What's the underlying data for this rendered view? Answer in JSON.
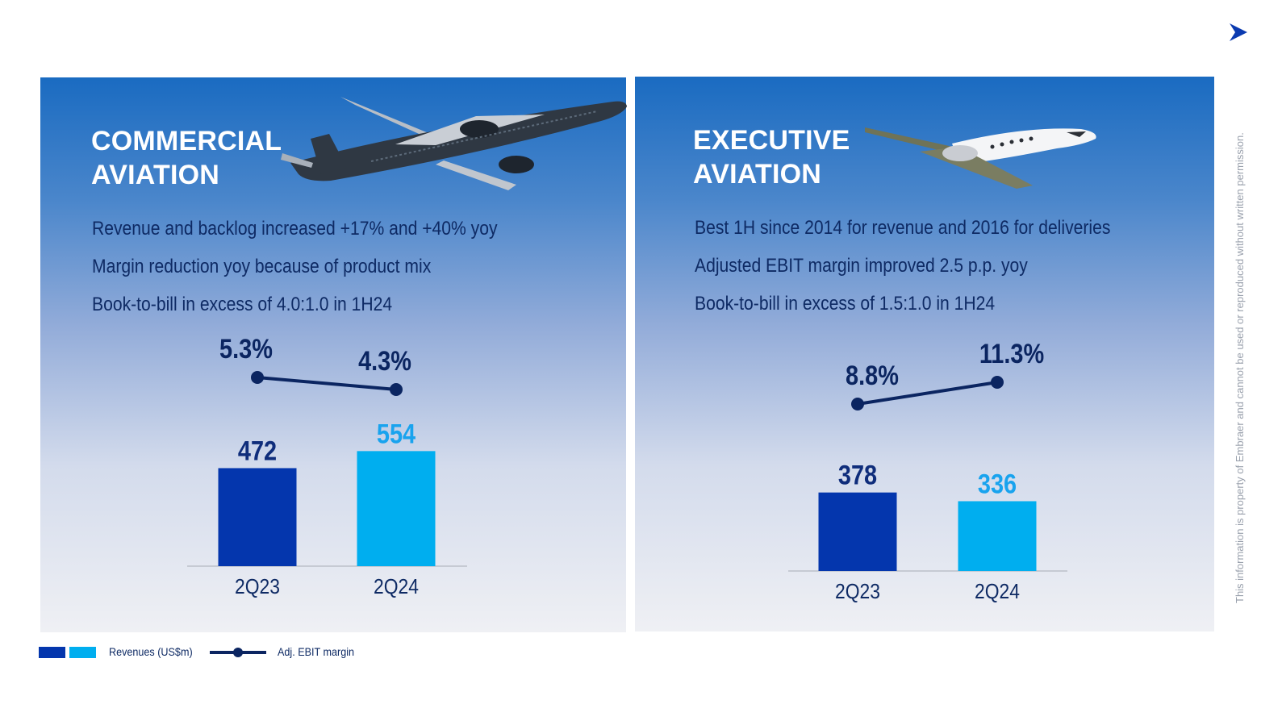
{
  "side_note": "This information is property of Embraer and cannot be used or reproduced without written permission.",
  "colors": {
    "bar_2Q23": "#0436ad",
    "bar_2Q24": "#00aeef",
    "line": "#0b2561",
    "label_2Q24": "#19a3ee"
  },
  "icons": {
    "nav": "arrow-right-icon"
  },
  "commercial": {
    "title": "COMMERCIAL\nAVIATION",
    "bullets": [
      "Revenue and backlog increased +17% and +40% yoy",
      "Margin reduction yoy because of product mix",
      "Book-to-bill in excess of 4.0:1.0 in 1H24"
    ]
  },
  "executive": {
    "title": "EXECUTIVE\nAVIATION",
    "bullets": [
      "Best 1H since 2014 for revenue and 2016 for deliveries",
      "Adjusted EBIT margin improved 2.5 p.p. yoy",
      "Book-to-bill in excess of 1.5:1.0 in 1H24"
    ]
  },
  "legend": {
    "revenues": "Revenues (US$m)",
    "margin": "Adj. EBIT margin"
  },
  "chart_data": [
    {
      "type": "bar",
      "panel": "COMMERCIAL AVIATION",
      "categories": [
        "2Q23",
        "2Q24"
      ],
      "series": [
        {
          "name": "Revenues (US$m)",
          "values": [
            472,
            554
          ],
          "labels": [
            "472",
            "554"
          ]
        },
        {
          "name": "Adj. EBIT margin",
          "type": "line",
          "values": [
            5.3,
            4.3
          ],
          "labels": [
            "5.3%",
            "4.3%"
          ]
        }
      ]
    },
    {
      "type": "bar",
      "panel": "EXECUTIVE AVIATION",
      "categories": [
        "2Q23",
        "2Q24"
      ],
      "series": [
        {
          "name": "Revenues (US$m)",
          "values": [
            378,
            336
          ],
          "labels": [
            "378",
            "336"
          ]
        },
        {
          "name": "Adj. EBIT margin",
          "type": "line",
          "values": [
            8.8,
            11.3
          ],
          "labels": [
            "8.8%",
            "11.3%"
          ]
        }
      ]
    }
  ]
}
